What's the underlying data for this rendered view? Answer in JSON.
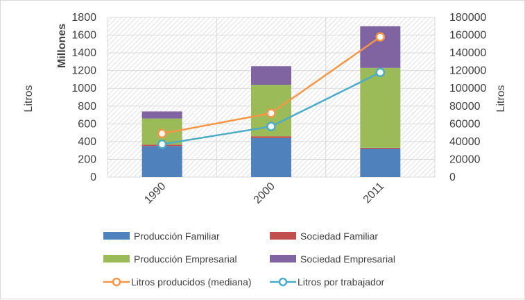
{
  "chart_data": {
    "type": "bar",
    "stacked": true,
    "categories": [
      "1990",
      "2000",
      "2011"
    ],
    "series": [
      {
        "name": "Producción Familiar",
        "kind": "bar",
        "axis": "left",
        "color": "#4f81bd",
        "values": [
          350,
          440,
          320
        ]
      },
      {
        "name": "Sociedad Familiar",
        "kind": "bar",
        "axis": "left",
        "color": "#c0504d",
        "values": [
          15,
          20,
          10
        ]
      },
      {
        "name": "Producción Empresarial",
        "kind": "bar",
        "axis": "left",
        "color": "#9bbb59",
        "values": [
          295,
          580,
          900
        ]
      },
      {
        "name": "Sociedad Empresarial",
        "kind": "bar",
        "axis": "left",
        "color": "#8064a2",
        "values": [
          80,
          210,
          470
        ]
      },
      {
        "name": "Litros producidos (mediana)",
        "kind": "line",
        "axis": "right",
        "color": "#f79646",
        "values": [
          49000,
          72000,
          158000
        ]
      },
      {
        "name": "Litros por trabajador",
        "kind": "line",
        "axis": "right",
        "color": "#4bacc6",
        "values": [
          37000,
          57000,
          118000
        ]
      }
    ],
    "y_left": {
      "label": "Litros",
      "units_label": "Millones",
      "min": 0,
      "max": 1800,
      "ticks": [
        "0",
        "200",
        "400",
        "600",
        "800",
        "1000",
        "1200",
        "1400",
        "1600",
        "1800"
      ]
    },
    "y_right": {
      "label": "Litros",
      "min": 0,
      "max": 180000,
      "ticks": [
        "0",
        "20000",
        "40000",
        "60000",
        "80000",
        "100000",
        "120000",
        "140000",
        "160000",
        "180000"
      ]
    },
    "grid": true,
    "legend": "bottom"
  }
}
